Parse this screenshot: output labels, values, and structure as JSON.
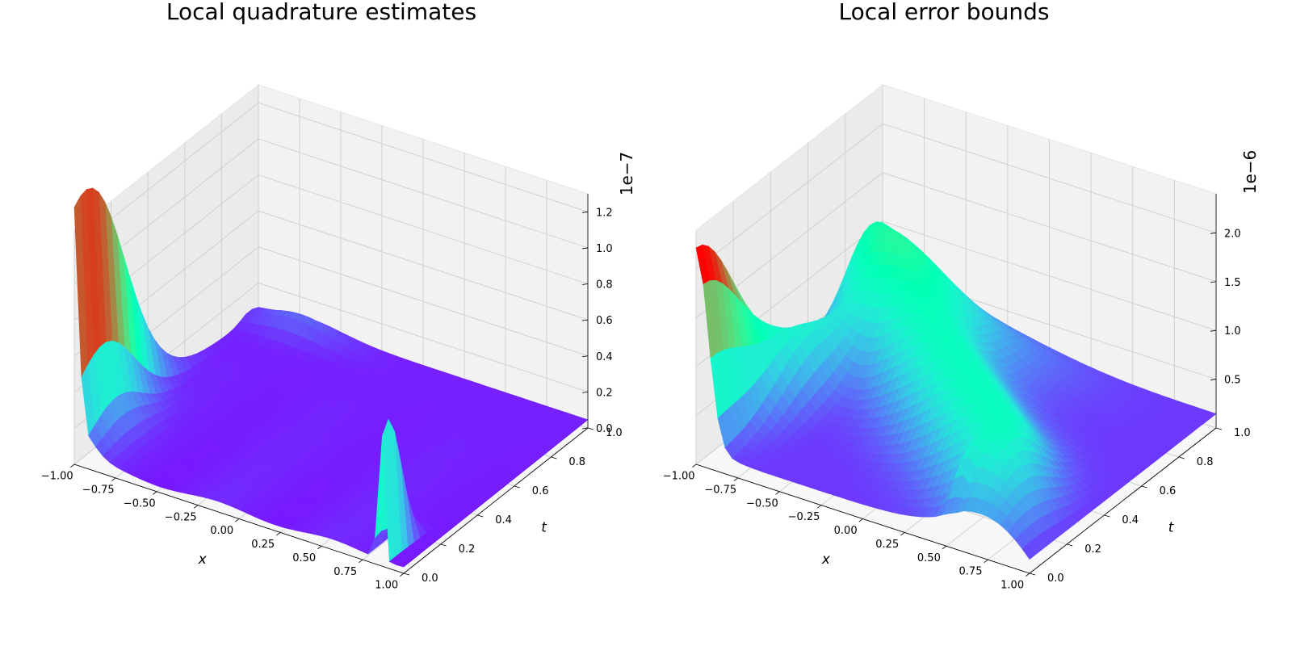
{
  "chart_data": [
    {
      "type": "surface3d",
      "title": "Local quadrature estimates",
      "xlabel": "x",
      "ylabel": "t",
      "zlabel": "",
      "z_offset_label": "1e−7",
      "xlim": [
        -1.0,
        1.0
      ],
      "ylim": [
        0.0,
        1.0
      ],
      "zlim": [
        0.0,
        1.3
      ],
      "x_ticks": [
        -1.0,
        -0.75,
        -0.5,
        -0.25,
        0.0,
        0.25,
        0.5,
        0.75,
        1.0
      ],
      "x_tick_labels": [
        "−1.00",
        "−0.75",
        "−0.50",
        "−0.25",
        "0.00",
        "0.25",
        "0.50",
        "0.75",
        "1.00"
      ],
      "y_ticks": [
        0.0,
        0.2,
        0.4,
        0.6,
        0.8,
        1.0
      ],
      "y_tick_labels": [
        "0.0",
        "0.2",
        "0.4",
        "0.6",
        "0.8",
        "1.0"
      ],
      "z_ticks": [
        0.0,
        0.2,
        0.4,
        0.6,
        0.8,
        1.0,
        1.2
      ],
      "z_tick_labels": [
        "0.0",
        "0.2",
        "0.4",
        "0.6",
        "0.8",
        "1.0",
        "1.2"
      ],
      "colormap": "rainbow",
      "surface_features": [
        {
          "x": -1.0,
          "t": 0.0,
          "z": 1.15,
          "note": "sharp spike at left edge"
        },
        {
          "x": 0.9,
          "t": 0.05,
          "z": 0.85,
          "note": "spike near right-front corner"
        }
      ],
      "baseline_z": 0.03
    },
    {
      "type": "surface3d",
      "title": "Local error bounds",
      "xlabel": "x",
      "ylabel": "t",
      "zlabel": "",
      "z_offset_label": "1e−6",
      "xlim": [
        -1.0,
        1.0
      ],
      "ylim": [
        0.0,
        1.0
      ],
      "zlim": [
        0.0,
        2.4
      ],
      "x_ticks": [
        -1.0,
        -0.75,
        -0.5,
        -0.25,
        0.0,
        0.25,
        0.5,
        0.75,
        1.0
      ],
      "x_tick_labels": [
        "−1.00",
        "−0.75",
        "−0.50",
        "−0.25",
        "0.00",
        "0.25",
        "0.50",
        "0.75",
        "1.00"
      ],
      "y_ticks": [
        0.0,
        0.2,
        0.4,
        0.6,
        0.8,
        1.0
      ],
      "y_tick_labels": [
        "0.0",
        "0.2",
        "0.4",
        "0.6",
        "0.8",
        "1.0"
      ],
      "z_ticks": [
        0.5,
        1.0,
        1.5,
        2.0
      ],
      "z_tick_labels": [
        "0.5",
        "1.0",
        "1.5",
        "2.0"
      ],
      "colormap": "rainbow",
      "surface_features": [
        {
          "x": -1.0,
          "t": 0.0,
          "z": 2.2,
          "note": "peak at left edge"
        },
        {
          "x": -0.5,
          "t": 0.5,
          "z": 1.0,
          "note": "ridge across middle"
        },
        {
          "x": 0.7,
          "t": 0.1,
          "z": 0.4,
          "note": "small bump near right-front"
        }
      ],
      "baseline_z": 0.12
    }
  ]
}
